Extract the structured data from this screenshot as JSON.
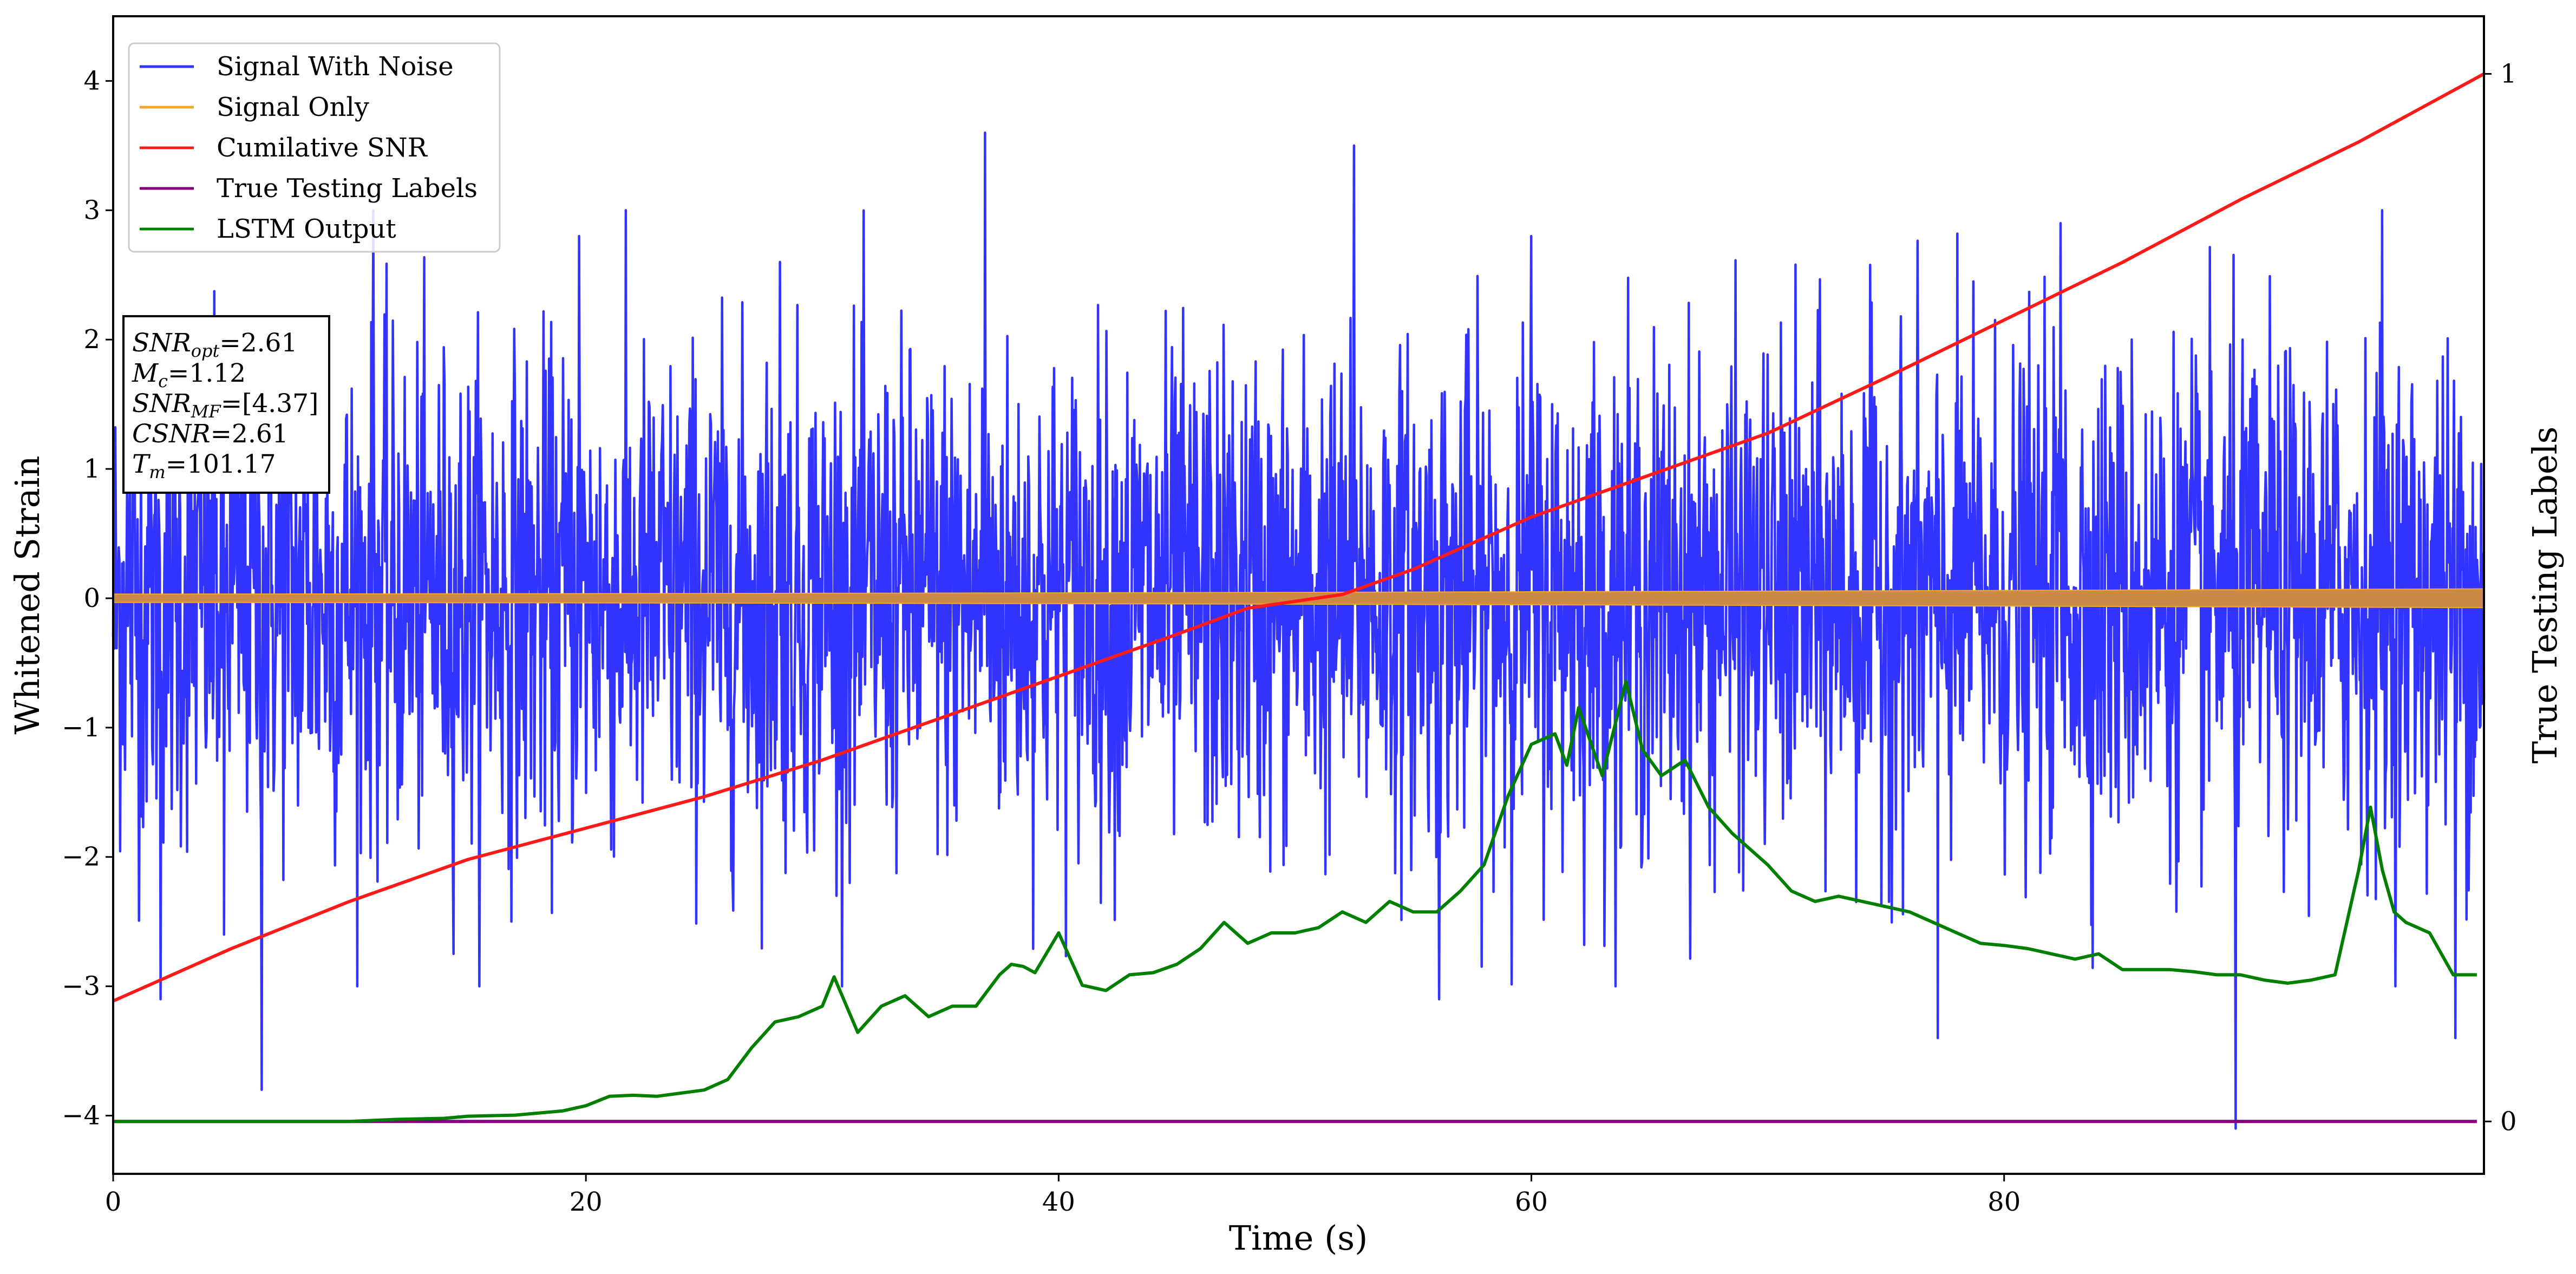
{
  "chart_data": {
    "type": "line",
    "xlabel": "Time (s)",
    "ylabel": "Whitened Strain",
    "ylabel_right": "True Testing Labels",
    "xlim": [
      0,
      100.3
    ],
    "ylim": [
      -4.45,
      4.5
    ],
    "ylim_right": [
      -0.05,
      1.055
    ],
    "xticks": [
      0,
      20,
      40,
      60,
      80
    ],
    "yticks": [
      -4,
      -3,
      -2,
      -1,
      0,
      1,
      2,
      3,
      4
    ],
    "yticks_right": [
      0,
      1
    ],
    "tick_labels_x": [
      "0",
      "20",
      "40",
      "60",
      "80"
    ],
    "tick_labels_y": [
      "−4",
      "−3",
      "−2",
      "−1",
      "0",
      "1",
      "2",
      "3",
      "4"
    ],
    "tick_labels_y_right": [
      "0",
      "1"
    ],
    "legend_position": "upper-left",
    "legend": [
      {
        "label": "Signal With Noise",
        "color": "#3333ff"
      },
      {
        "label": "Signal Only",
        "color": "#f5a623"
      },
      {
        "label": "Cumilative SNR",
        "color": "#ff1a1a"
      },
      {
        "label": "True Testing Labels",
        "color": "#800080"
      },
      {
        "label": "LSTM Output",
        "color": "#007f00"
      }
    ],
    "annotation_box": [
      {
        "main": "SNR",
        "sub": "opt",
        "rest": "=2.61"
      },
      {
        "main": "M",
        "sub": "c",
        "rest": "=1.12"
      },
      {
        "main": "SNR",
        "sub": "MF",
        "rest": "=[4.37]"
      },
      {
        "main": "CSNR",
        "sub": "",
        "rest": "=2.61"
      },
      {
        "main": "T",
        "sub": "m",
        "rest": "=101.17"
      }
    ],
    "series": [
      {
        "name": "Signal With Noise",
        "axis": "left",
        "style": "dense-noise",
        "x_range": [
          0,
          100.3
        ],
        "typical_band": [
          -1.5,
          1.5
        ],
        "peaks": [
          {
            "x": 36.9,
            "y": 3.6
          },
          {
            "x": 52.5,
            "y": 3.5
          },
          {
            "x": 11.0,
            "y": 3.0
          },
          {
            "x": 96.0,
            "y": 3.0
          },
          {
            "x": 4.7,
            "y": -2.6
          },
          {
            "x": 6.3,
            "y": -3.8
          },
          {
            "x": 2.0,
            "y": -3.1
          },
          {
            "x": 56.1,
            "y": -3.1
          },
          {
            "x": 77.2,
            "y": -3.4
          },
          {
            "x": 89.8,
            "y": -4.1
          },
          {
            "x": 99.1,
            "y": -3.4
          },
          {
            "x": 60.0,
            "y": 2.8
          },
          {
            "x": 82.4,
            "y": 2.9
          },
          {
            "x": 19.7,
            "y": 2.8
          },
          {
            "x": 28.2,
            "y": 2.6
          }
        ]
      },
      {
        "name": "Signal Only",
        "axis": "left",
        "style": "chirp",
        "x_range": [
          0,
          100.3
        ],
        "amplitude_start": 0.02,
        "amplitude_end": 0.06
      },
      {
        "name": "Cumilative SNR",
        "axis": "right",
        "x": [
          0,
          5,
          10,
          15,
          20,
          25,
          30,
          35,
          40,
          45,
          48,
          52,
          55,
          60,
          65,
          70,
          75,
          80,
          85,
          90,
          95,
          100.3
        ],
        "y": [
          0.115,
          0.165,
          0.21,
          0.25,
          0.28,
          0.31,
          0.345,
          0.385,
          0.425,
          0.465,
          0.49,
          0.503,
          0.527,
          0.577,
          0.617,
          0.657,
          0.71,
          0.765,
          0.82,
          0.88,
          0.935,
          1.0
        ]
      },
      {
        "name": "True Testing Labels",
        "axis": "right",
        "x": [
          0,
          100
        ],
        "y": [
          0,
          0
        ]
      },
      {
        "name": "LSTM Output",
        "axis": "right",
        "x": [
          0,
          10,
          12,
          14,
          15,
          17,
          19,
          20,
          21,
          22,
          23,
          24,
          25,
          26,
          27,
          28,
          29,
          30,
          30.5,
          31.5,
          32.5,
          33.5,
          34.5,
          35.5,
          36.5,
          37.5,
          38,
          38.5,
          39,
          40,
          41,
          42,
          43,
          44,
          45,
          46,
          47,
          48,
          49,
          50,
          51,
          52,
          53,
          54,
          55,
          56,
          57,
          58,
          59,
          60,
          61,
          61.5,
          62,
          63,
          64,
          64.7,
          65.5,
          66.5,
          67.5,
          68.5,
          70,
          71,
          72,
          73,
          74,
          75,
          76,
          77,
          78,
          79,
          80,
          81,
          82,
          83,
          84,
          85,
          86,
          87,
          88,
          89,
          90,
          91,
          92,
          93,
          94,
          95,
          95.5,
          96,
          96.5,
          97,
          98,
          99,
          100
        ],
        "y": [
          0,
          0,
          0.002,
          0.003,
          0.005,
          0.006,
          0.01,
          0.015,
          0.024,
          0.025,
          0.024,
          0.027,
          0.03,
          0.04,
          0.07,
          0.095,
          0.1,
          0.11,
          0.138,
          0.085,
          0.11,
          0.12,
          0.1,
          0.11,
          0.11,
          0.14,
          0.15,
          0.148,
          0.142,
          0.18,
          0.13,
          0.125,
          0.14,
          0.142,
          0.15,
          0.165,
          0.19,
          0.17,
          0.18,
          0.18,
          0.185,
          0.2,
          0.19,
          0.21,
          0.2,
          0.2,
          0.22,
          0.245,
          0.31,
          0.36,
          0.37,
          0.34,
          0.395,
          0.33,
          0.42,
          0.355,
          0.33,
          0.345,
          0.3,
          0.275,
          0.245,
          0.22,
          0.21,
          0.215,
          0.21,
          0.205,
          0.2,
          0.19,
          0.18,
          0.17,
          0.168,
          0.165,
          0.16,
          0.155,
          0.16,
          0.145,
          0.145,
          0.145,
          0.143,
          0.14,
          0.14,
          0.135,
          0.132,
          0.135,
          0.14,
          0.24,
          0.3,
          0.24,
          0.2,
          0.19,
          0.18,
          0.14,
          0.14
        ]
      }
    ]
  }
}
